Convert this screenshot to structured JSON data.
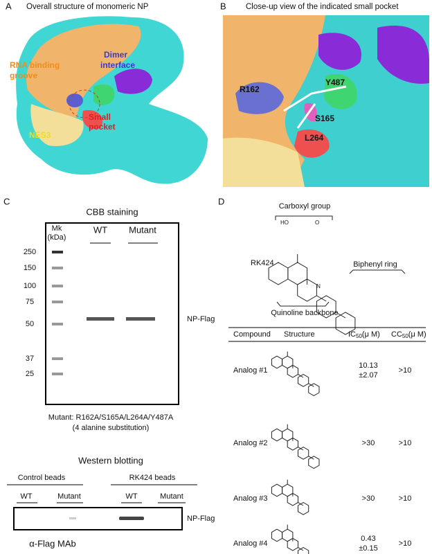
{
  "panel_a": {
    "letter": "A",
    "title": "Overall structure of monomeric NP",
    "labels": {
      "rna_groove_1": "RNA binding",
      "rna_groove_2": "groove",
      "dimer_1": "Dimer",
      "dimer_2": "interface",
      "pocket_1": "Small",
      "pocket_2": "pocket",
      "nes": "NES3"
    }
  },
  "panel_b": {
    "letter": "B",
    "title": "Close-up view of the indicated small pocket",
    "labels": {
      "r162": "R162",
      "y487": "Y487",
      "s165": "S165",
      "l264": "L264"
    }
  },
  "panel_c": {
    "letter": "C",
    "cbb": {
      "title": "CBB staining",
      "marker_1": "Mk",
      "marker_2": "(kDa)",
      "lanes": [
        "WT",
        "Mutant"
      ],
      "marker_sizes": [
        "250",
        "150",
        "100",
        "75",
        "50",
        "37",
        "25"
      ],
      "band_label": "NP-Flag"
    },
    "mutant_note_1": "Mutant: R162A/S165A/L264A/Y487A",
    "mutant_note_2": "(4 alanine substitution)",
    "western": {
      "title": "Western blotting",
      "groups": [
        "Control beads",
        "RK424 beads"
      ],
      "lanes": [
        "WT",
        "Mutant",
        "WT",
        "Mutant"
      ],
      "band_label": "NP-Flag",
      "antibody": "α-Flag MAb"
    }
  },
  "panel_d": {
    "letter": "D",
    "structure": {
      "compound": "RK424",
      "carboxyl": "Carboxyl group",
      "biphenyl": "Biphenyl ring",
      "quinoline": "Quinoline backbone",
      "ho": "HO",
      "o": "O",
      "n": "N"
    },
    "table": {
      "headers": {
        "compound": "Compound",
        "structure": "Structure",
        "ic50": {
          "main": "IC",
          "sub": "50",
          "unit": "(μ M)"
        },
        "cc50": {
          "main": "CC",
          "sub": "50",
          "unit": "(μ M)"
        }
      },
      "rows": [
        {
          "compound": "Analog #1",
          "ic50": [
            "10.13",
            "±2.07"
          ],
          "cc50": ">10"
        },
        {
          "compound": "Analog #2",
          "ic50": [
            ">30"
          ],
          "cc50": ">10"
        },
        {
          "compound": "Analog #3",
          "ic50": [
            ">30"
          ],
          "cc50": ">10"
        },
        {
          "compound": "Analog #4",
          "ic50": [
            "0.43",
            "±0.15"
          ],
          "cc50": ">10"
        }
      ]
    }
  }
}
